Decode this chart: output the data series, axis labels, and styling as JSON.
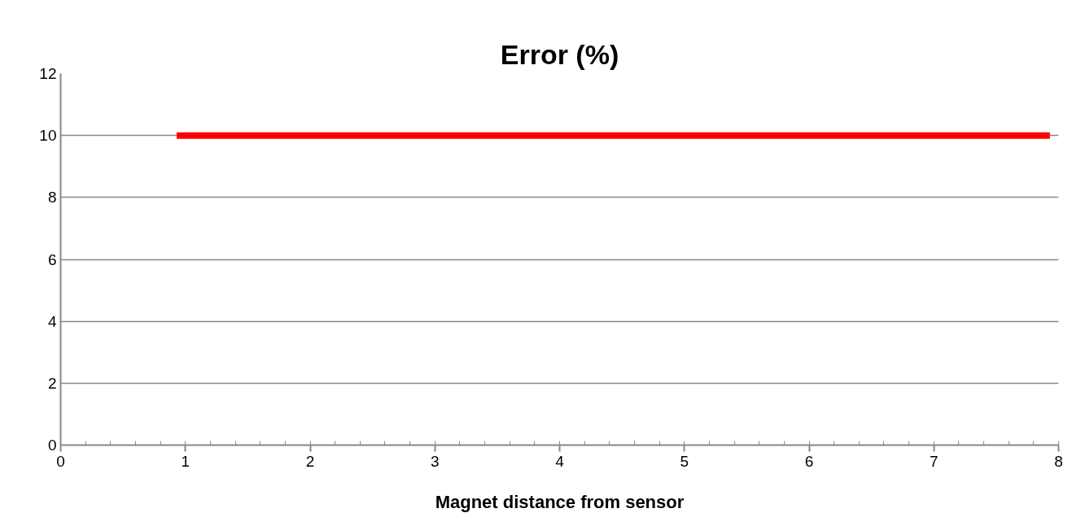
{
  "chart_data": {
    "type": "line",
    "title": "Error (%)",
    "xlabel": "Magnet distance from sensor",
    "x": [
      0.93,
      7.93
    ],
    "series": [
      {
        "color": "#ff0000",
        "values": [
          10,
          10
        ]
      }
    ],
    "xlim": [
      0,
      8
    ],
    "xticks": [
      0,
      1,
      2,
      3,
      4,
      5,
      6,
      7,
      8
    ],
    "ylim": [
      0,
      12
    ],
    "yticks": [
      0,
      2,
      4,
      6,
      8,
      10,
      12
    ],
    "grid": "y",
    "marker": "none",
    "line_style": "solid"
  }
}
